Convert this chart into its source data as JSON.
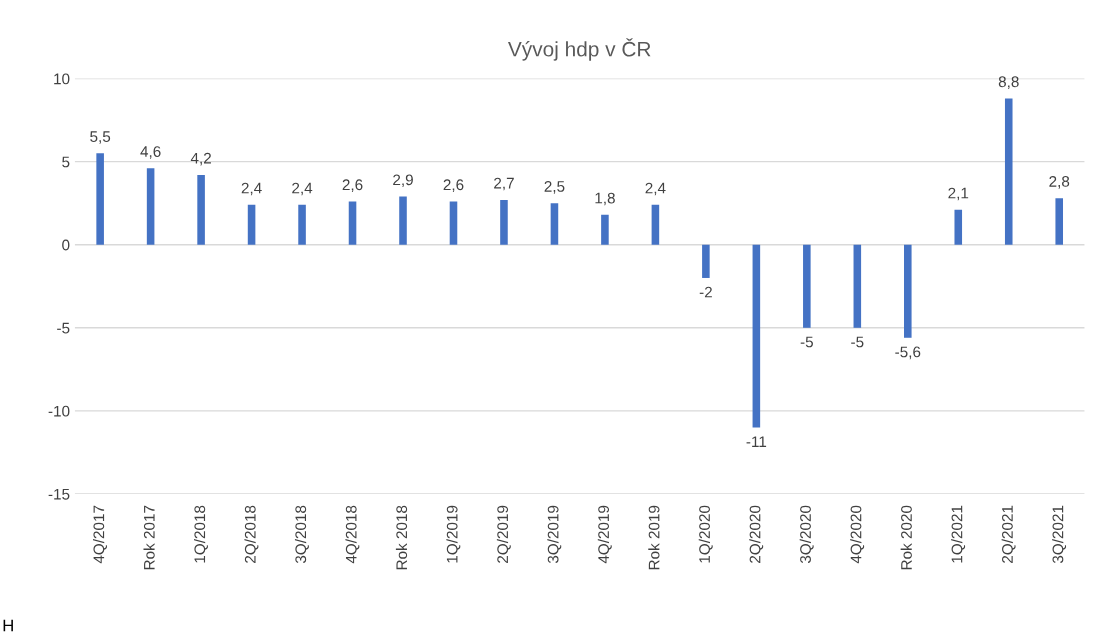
{
  "chart_data": {
    "type": "bar",
    "title": "Vývoj hdp v ČR",
    "categories": [
      "4Q/2017",
      "Rok 2017",
      "1Q/2018",
      "2Q/2018",
      "3Q/2018",
      "4Q/2018",
      "Rok 2018",
      "1Q/2019",
      "2Q/2019",
      "3Q/2019",
      "4Q/2019",
      "Rok 2019",
      "1Q/2020",
      "2Q/2020",
      "3Q/2020",
      "4Q/2020",
      "Rok 2020",
      "1Q/2021",
      "2Q/2021",
      "3Q/2021"
    ],
    "values": [
      5.5,
      4.6,
      4.2,
      2.4,
      2.4,
      2.6,
      2.9,
      2.6,
      2.7,
      2.5,
      1.8,
      2.4,
      -2,
      -11,
      -5,
      -5,
      -5.6,
      2.1,
      8.8,
      2.8
    ],
    "value_labels": [
      "5,5",
      "4,6",
      "4,2",
      "2,4",
      "2,4",
      "2,6",
      "2,9",
      "2,6",
      "2,7",
      "2,5",
      "1,8",
      "2,4",
      "-2",
      "-11",
      "-5",
      "-5",
      "-5,6",
      "2,1",
      "8,8",
      "2,8"
    ],
    "color": "#4472c4",
    "ylim": [
      -15,
      10
    ],
    "yticks": [
      -15,
      -10,
      -5,
      0,
      5,
      10
    ],
    "grid": "y",
    "annotations": [
      "H"
    ]
  }
}
